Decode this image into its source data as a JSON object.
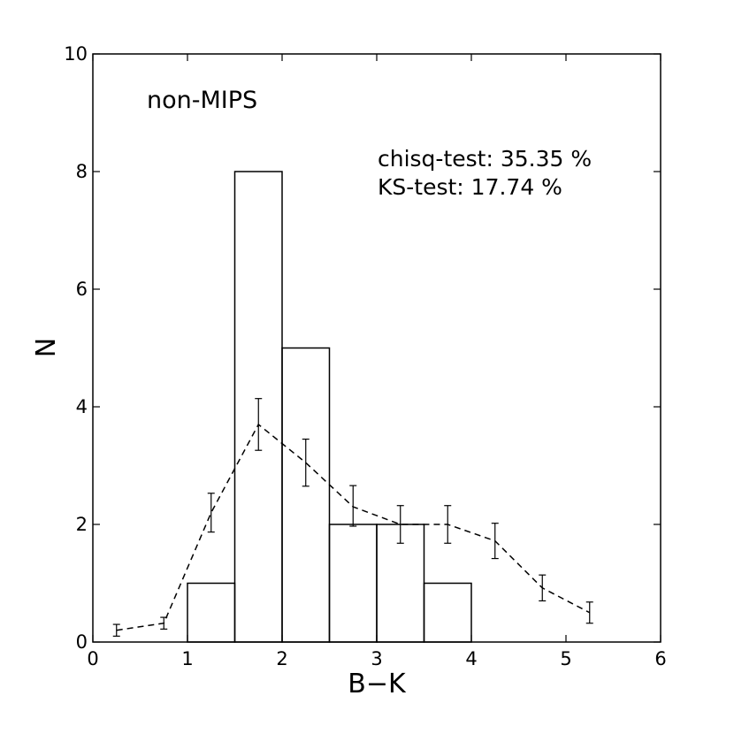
{
  "chart_data": {
    "type": "bar",
    "xlabel": "B−K",
    "ylabel": "N",
    "xlim": [
      0,
      6
    ],
    "ylim": [
      0,
      10
    ],
    "xticks": [
      "0",
      "1",
      "2",
      "3",
      "4",
      "5",
      "6"
    ],
    "yticks": [
      "0",
      "2",
      "4",
      "6",
      "8",
      "10"
    ],
    "histogram": {
      "bin_edges": [
        1.0,
        1.5,
        2.0,
        2.5,
        3.0,
        3.5,
        4.0
      ],
      "counts": [
        1,
        8,
        5,
        2,
        2,
        1
      ]
    },
    "comparison_line": {
      "style": "dashed",
      "x": [
        0.25,
        0.75,
        1.25,
        1.75,
        2.25,
        2.75,
        3.25,
        3.75,
        4.25,
        4.75,
        5.25
      ],
      "y": [
        0.2,
        0.32,
        2.2,
        3.7,
        3.05,
        2.3,
        2.0,
        2.0,
        1.72,
        0.92,
        0.5
      ],
      "err_low": [
        0.1,
        0.1,
        0.33,
        0.44,
        0.4,
        0.33,
        0.32,
        0.32,
        0.3,
        0.22,
        0.18
      ],
      "err_high": [
        0.1,
        0.1,
        0.33,
        0.44,
        0.4,
        0.36,
        0.32,
        0.32,
        0.3,
        0.22,
        0.18
      ]
    },
    "annotations": {
      "sample_label": "non-MIPS",
      "chisq_text": "chisq-test: 35.35 %",
      "ks_text": "KS-test: 17.74 %"
    }
  }
}
